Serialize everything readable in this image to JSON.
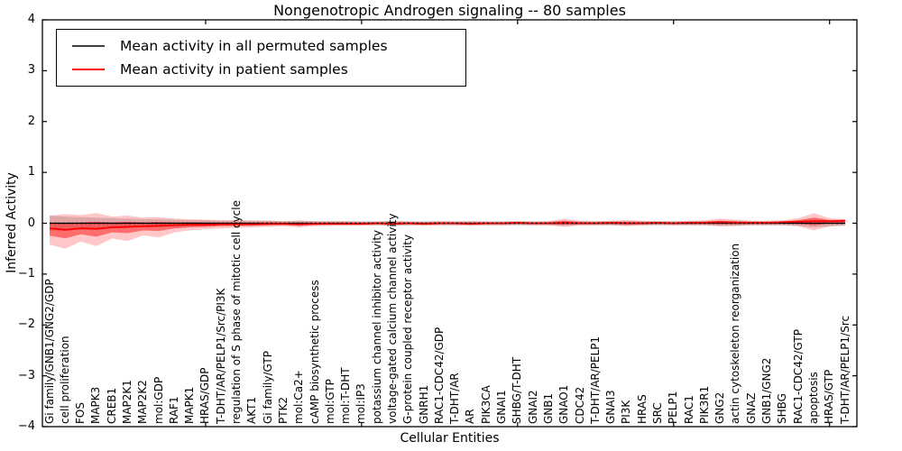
{
  "title": "Nongenotropic Androgen signaling -- 80 samples",
  "axes": {
    "xlabel": "Cellular Entities",
    "ylabel": "Inferred Activity",
    "ytick_labels": [
      "−4",
      "−3",
      "−2",
      "−1",
      "0",
      "1",
      "2",
      "3",
      "4"
    ]
  },
  "chart_data": {
    "type": "line",
    "title": "Nongenotropic Androgen signaling -- 80 samples",
    "xlabel": "Cellular Entities",
    "ylabel": "Inferred Activity",
    "ylim": [
      -4,
      4
    ],
    "yticks": [
      -4,
      -3,
      -2,
      -1,
      0,
      1,
      2,
      3,
      4
    ],
    "x_top_ticks_at": [
      10,
      20,
      30,
      40,
      50
    ],
    "zero_reference_line": true,
    "legend_position": "upper left",
    "grid": false,
    "categories": [
      "Gi family/GNB1/GNG2/GDP",
      "cell proliferation",
      "FOS",
      "MAPK3",
      "CREB1",
      "MAP2K1",
      "MAP2K2",
      "mol:GDP",
      "RAF1",
      "MAPK1",
      "HRAS/GDP",
      "T-DHT/AR/PELP1/Src/PI3K",
      "regulation of S phase of mitotic cell cycle",
      "AKT1",
      "Gi family/GTP",
      "PTK2",
      "mol:Ca2+",
      "cAMP biosynthetic process",
      "mol:GTP",
      "mol:T-DHT",
      "mol:IP3",
      "potassium channel inhibitor activity",
      "voltage-gated calcium channel activity",
      "G-protein coupled receptor activity",
      "GNRH1",
      "RAC1-CDC42/GDP",
      "T-DHT/AR",
      "AR",
      "PIK3CA",
      "GNAI1",
      "SHBG/T-DHT",
      "GNAI2",
      "GNB1",
      "GNAO1",
      "CDC42",
      "T-DHT/AR/PELP1",
      "GNAI3",
      "PI3K",
      "HRAS",
      "SRC",
      "PELP1",
      "RAC1",
      "PIK3R1",
      "GNG2",
      "actin cytoskeleton reorganization",
      "GNAZ",
      "GNB1/GNG2",
      "SHBG",
      "RAC1-CDC42/GTP",
      "apoptosis",
      "HRAS/GTP",
      "T-DHT/AR/PELP1/Src"
    ],
    "series": [
      {
        "name": "Mean activity in all permuted samples",
        "color": "#000000",
        "mean_constant": 0.0,
        "band_symmetric": true,
        "band_hi": [
          0.15,
          0.13,
          0.12,
          0.11,
          0.1,
          0.09,
          0.08,
          0.08,
          0.07,
          0.06,
          0.06,
          0.05,
          0.05,
          0.05,
          0.05,
          0.04,
          0.05,
          0.04,
          0.04,
          0.04,
          0.04,
          0.04,
          0.05,
          0.04,
          0.04,
          0.04,
          0.04,
          0.04,
          0.04,
          0.04,
          0.04,
          0.04,
          0.04,
          0.05,
          0.04,
          0.04,
          0.04,
          0.05,
          0.04,
          0.04,
          0.04,
          0.04,
          0.04,
          0.05,
          0.05,
          0.04,
          0.04,
          0.04,
          0.05,
          0.08,
          0.06,
          0.05
        ],
        "band_color": "#000000",
        "band_alpha": 0.16
      },
      {
        "name": "Mean activity in patient samples",
        "color": "#ff0000",
        "mean": [
          -0.1,
          -0.13,
          -0.1,
          -0.11,
          -0.08,
          -0.07,
          -0.06,
          -0.05,
          -0.04,
          -0.03,
          -0.03,
          -0.02,
          -0.02,
          -0.02,
          -0.01,
          -0.01,
          -0.02,
          -0.01,
          -0.01,
          -0.01,
          -0.01,
          0.0,
          -0.01,
          0.0,
          -0.01,
          0.0,
          0.0,
          -0.01,
          0.0,
          0.0,
          0.01,
          0.0,
          0.0,
          0.01,
          0.0,
          0.0,
          0.01,
          0.0,
          0.0,
          0.01,
          0.0,
          0.01,
          0.01,
          0.02,
          0.01,
          0.01,
          0.01,
          0.02,
          0.03,
          0.04,
          0.04,
          0.05
        ],
        "band_hi": [
          0.15,
          0.18,
          0.16,
          0.2,
          0.13,
          0.15,
          0.11,
          0.12,
          0.09,
          0.08,
          0.07,
          0.06,
          0.06,
          0.05,
          0.05,
          0.04,
          0.05,
          0.04,
          0.04,
          0.04,
          0.03,
          0.03,
          0.04,
          0.03,
          0.03,
          0.04,
          0.03,
          0.04,
          0.03,
          0.03,
          0.04,
          0.03,
          0.04,
          0.09,
          0.05,
          0.04,
          0.05,
          0.06,
          0.05,
          0.04,
          0.04,
          0.05,
          0.06,
          0.09,
          0.07,
          0.05,
          0.05,
          0.06,
          0.1,
          0.2,
          0.1,
          0.08
        ],
        "band_lo": [
          -0.42,
          -0.5,
          -0.36,
          -0.45,
          -0.3,
          -0.35,
          -0.24,
          -0.28,
          -0.18,
          -0.14,
          -0.12,
          -0.1,
          -0.09,
          -0.08,
          -0.07,
          -0.06,
          -0.08,
          -0.06,
          -0.05,
          -0.05,
          -0.05,
          -0.04,
          -0.05,
          -0.04,
          -0.05,
          -0.04,
          -0.04,
          -0.05,
          -0.04,
          -0.04,
          -0.03,
          -0.04,
          -0.04,
          -0.07,
          -0.04,
          -0.04,
          -0.04,
          -0.05,
          -0.04,
          -0.03,
          -0.04,
          -0.04,
          -0.04,
          -0.06,
          -0.05,
          -0.04,
          -0.04,
          -0.04,
          -0.06,
          -0.14,
          -0.06,
          -0.04
        ],
        "band_color": "#ff0000",
        "band_alpha": 0.22,
        "inner_band_scale": 0.45,
        "inner_band_alpha": 0.45
      }
    ]
  }
}
